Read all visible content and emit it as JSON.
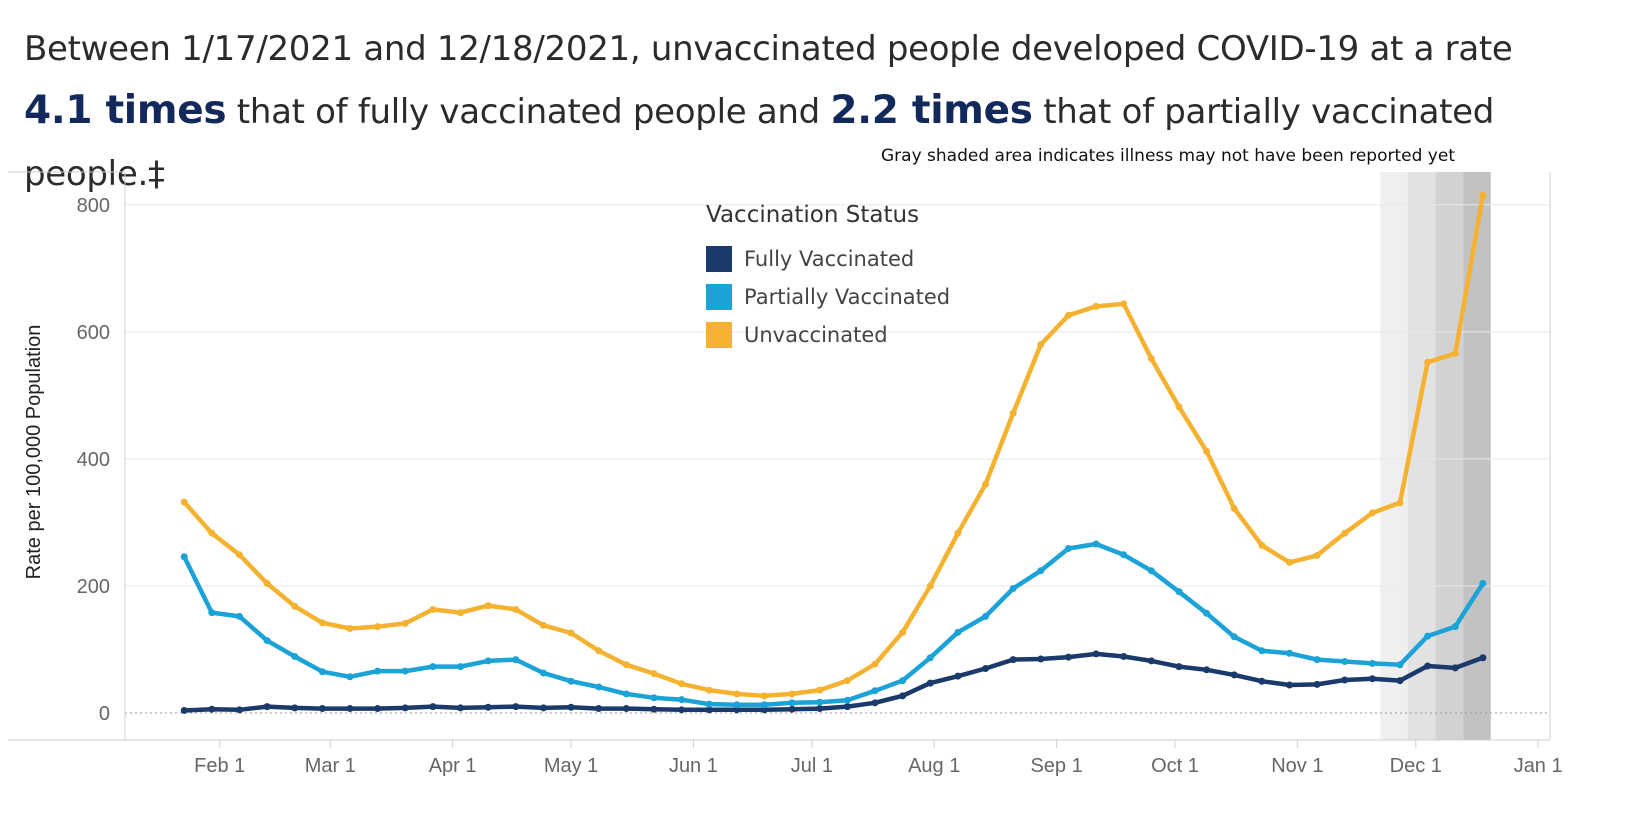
{
  "title": {
    "part1": "Between 1/17/2021 and 12/18/2021, unvaccinated people developed COVID-19 at a rate",
    "highlight1": "4.1 times",
    "part2": "that of fully vaccinated people and",
    "highlight2": "2.2 times",
    "part3": "that of partially vaccinated people.‡"
  },
  "note": "Gray shaded area indicates illness may not have been reported yet",
  "chart_data": {
    "type": "line",
    "title": "",
    "xlabel": "",
    "ylabel": "Rate per 100,000 Population",
    "ylim": [
      0,
      850
    ],
    "yticks": [
      0,
      200,
      400,
      600,
      800
    ],
    "x_axis": {
      "type": "date",
      "range": [
        "2021-01-08",
        "2022-01-04"
      ],
      "ticks": [
        {
          "date": "2021-02-01",
          "label": "Feb 1"
        },
        {
          "date": "2021-03-01",
          "label": "Mar 1"
        },
        {
          "date": "2021-04-01",
          "label": "Apr 1"
        },
        {
          "date": "2021-05-01",
          "label": "May 1"
        },
        {
          "date": "2021-06-01",
          "label": "Jun 1"
        },
        {
          "date": "2021-07-01",
          "label": "Jul 1"
        },
        {
          "date": "2021-08-01",
          "label": "Aug 1"
        },
        {
          "date": "2021-09-01",
          "label": "Sep 1"
        },
        {
          "date": "2021-10-01",
          "label": "Oct 1"
        },
        {
          "date": "2021-11-01",
          "label": "Nov 1"
        },
        {
          "date": "2021-12-01",
          "label": "Dec 1"
        },
        {
          "date": "2022-01-01",
          "label": "Jan 1"
        }
      ]
    },
    "grid": true,
    "legend": {
      "title": "Vaccination Status",
      "position": "top-center"
    },
    "shaded_periods": [
      {
        "start": "2021-11-22",
        "end": "2021-11-29",
        "color": "#efefef"
      },
      {
        "start": "2021-11-29",
        "end": "2021-12-06",
        "color": "#e2e2e2"
      },
      {
        "start": "2021-12-06",
        "end": "2021-12-13",
        "color": "#d2d2d2"
      },
      {
        "start": "2021-12-13",
        "end": "2021-12-20",
        "color": "#c2c2c2"
      }
    ],
    "x": [
      "2021-01-23",
      "2021-01-30",
      "2021-02-06",
      "2021-02-13",
      "2021-02-20",
      "2021-02-27",
      "2021-03-06",
      "2021-03-13",
      "2021-03-20",
      "2021-03-27",
      "2021-04-03",
      "2021-04-10",
      "2021-04-17",
      "2021-04-24",
      "2021-05-01",
      "2021-05-08",
      "2021-05-15",
      "2021-05-22",
      "2021-05-29",
      "2021-06-05",
      "2021-06-12",
      "2021-06-19",
      "2021-06-26",
      "2021-07-03",
      "2021-07-10",
      "2021-07-17",
      "2021-07-24",
      "2021-07-31",
      "2021-08-07",
      "2021-08-14",
      "2021-08-21",
      "2021-08-28",
      "2021-09-04",
      "2021-09-11",
      "2021-09-18",
      "2021-09-25",
      "2021-10-02",
      "2021-10-09",
      "2021-10-16",
      "2021-10-23",
      "2021-10-30",
      "2021-11-06",
      "2021-11-13",
      "2021-11-20",
      "2021-11-27",
      "2021-12-04",
      "2021-12-11",
      "2021-12-18"
    ],
    "series": [
      {
        "name": "Fully Vaccinated",
        "color": "#1a3a6b",
        "values": [
          4,
          6,
          5,
          10,
          8,
          7,
          7,
          7,
          8,
          10,
          8,
          9,
          10,
          8,
          9,
          7,
          7,
          6,
          5,
          5,
          5,
          5,
          6,
          7,
          10,
          16,
          27,
          47,
          58,
          70,
          84,
          85,
          88,
          93,
          89,
          82,
          73,
          68,
          60,
          50,
          44,
          45,
          52,
          54,
          51,
          74,
          71,
          87
        ]
      },
      {
        "name": "Partially Vaccinated",
        "color": "#1ba2d6",
        "values": [
          246,
          158,
          152,
          114,
          89,
          65,
          57,
          66,
          66,
          73,
          73,
          82,
          84,
          63,
          50,
          41,
          30,
          24,
          21,
          14,
          13,
          13,
          16,
          17,
          20,
          35,
          51,
          87,
          127,
          152,
          196,
          224,
          259,
          266,
          249,
          224,
          191,
          157,
          120,
          98,
          94,
          84,
          81,
          78,
          76,
          121,
          136,
          204
        ]
      },
      {
        "name": "Unvaccinated",
        "color": "#f5b231",
        "values": [
          332,
          283,
          249,
          204,
          168,
          142,
          133,
          136,
          141,
          163,
          158,
          169,
          163,
          138,
          126,
          98,
          76,
          62,
          46,
          36,
          30,
          27,
          30,
          36,
          51,
          77,
          127,
          200,
          283,
          360,
          472,
          580,
          626,
          640,
          644,
          558,
          482,
          412,
          322,
          264,
          237,
          248,
          283,
          315,
          331,
          552,
          566,
          815
        ]
      }
    ]
  }
}
